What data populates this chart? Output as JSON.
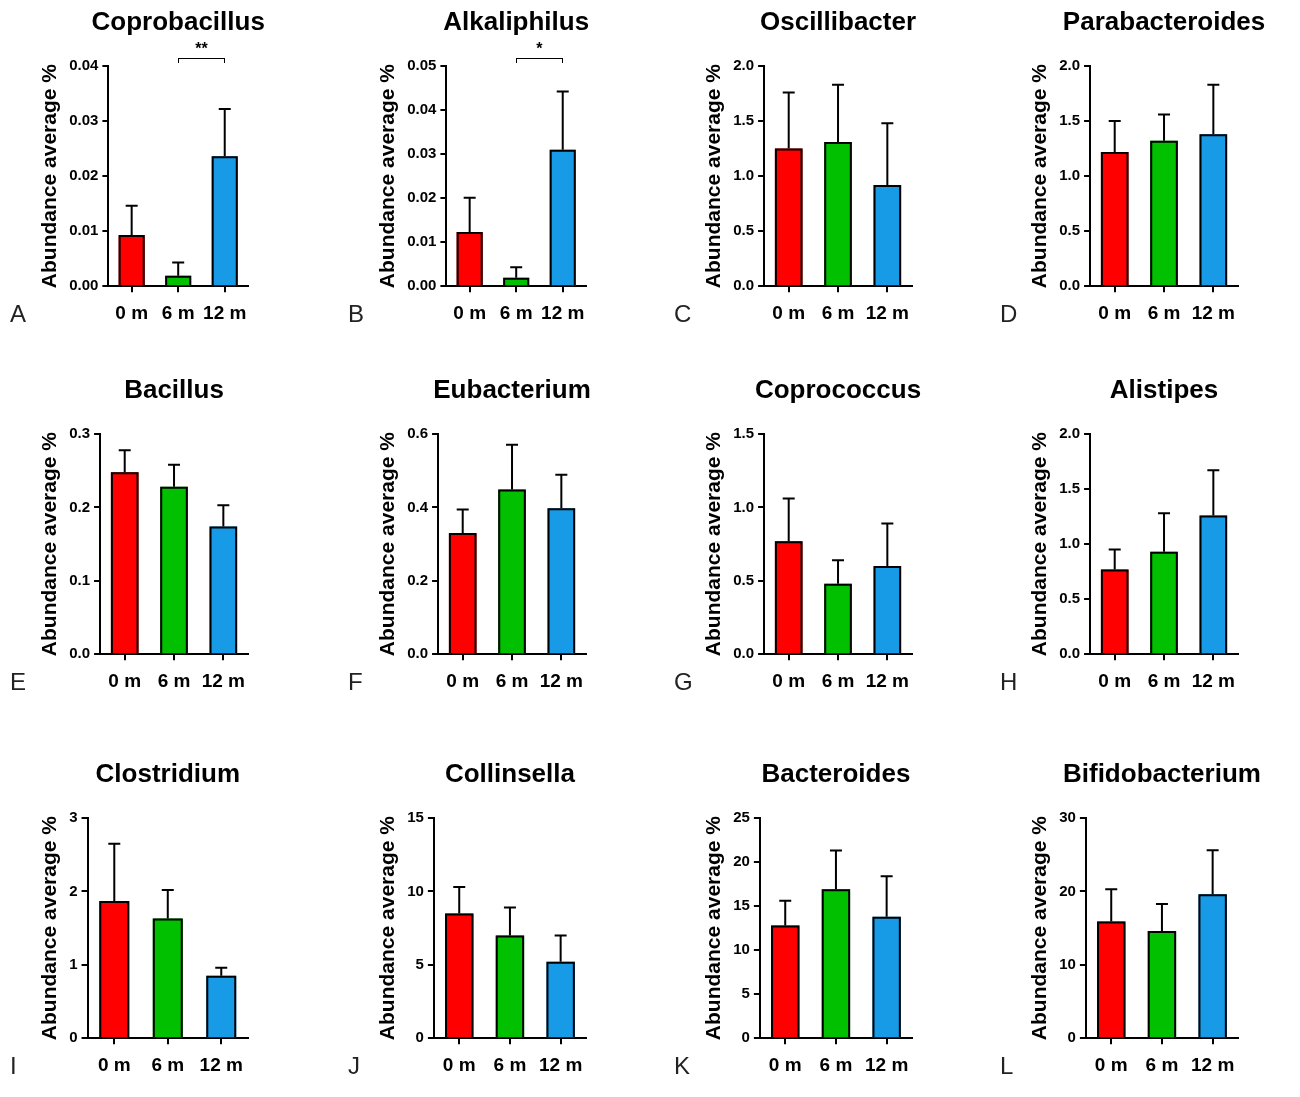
{
  "chart_data": [
    {
      "type": "bar",
      "title": "Coprobacillus",
      "ylabel": "Abundance average %",
      "categories": [
        "0 m",
        "6 m",
        "12 m"
      ],
      "values": [
        0.0093,
        0.0019,
        0.0236
      ],
      "colors": [
        "#ff0000",
        "#00c000",
        "#189be6"
      ],
      "errors": [
        [
          0.0093,
          0.0146
        ],
        [
          0.0019,
          0.0043
        ],
        [
          0.0236,
          0.0322
        ]
      ],
      "ylim": [
        0,
        0.04
      ],
      "yticks": [
        {
          "value": 0,
          "label": "0.00"
        },
        0.01,
        0.02,
        0.03,
        0.04
      ],
      "annotations": [
        "**",
        "A"
      ]
    },
    {
      "type": "bar",
      "title": "Alkaliphilus",
      "ylabel": "Abundance average %",
      "categories": [
        "0 m",
        "6 m",
        "12 m"
      ],
      "values": [
        0.0123,
        0.0019,
        0.031
      ],
      "colors": [
        "#ff0000",
        "#00c000",
        "#189be6"
      ],
      "errors": [
        [
          0.0123,
          0.0201
        ],
        [
          0.0019,
          0.0043
        ],
        [
          0.031,
          0.0442
        ]
      ],
      "ylim": [
        0,
        0.05
      ],
      "yticks": [
        {
          "value": 0,
          "label": "0.00"
        },
        0.01,
        0.02,
        0.03,
        0.04,
        0.05
      ],
      "annotations": [
        "*",
        "B"
      ]
    },
    {
      "type": "bar",
      "title": "Oscillibacter",
      "ylabel": "Abundance average %",
      "categories": [
        "0 m",
        "6 m",
        "12 m"
      ],
      "values": [
        1.25,
        1.31,
        0.92
      ],
      "colors": [
        "#ff0000",
        "#00c000",
        "#189be6"
      ],
      "errors": [
        [
          1.25,
          1.76
        ],
        [
          1.31,
          1.83
        ],
        [
          0.92,
          1.48
        ]
      ],
      "ylim": [
        0,
        2
      ],
      "yticks": [
        {
          "value": 0,
          "label": "0.0"
        },
        0.5,
        {
          "value": 1,
          "label": "1.0"
        },
        1.5,
        {
          "value": 2,
          "label": "2.0"
        }
      ],
      "annotations": [
        "C"
      ]
    },
    {
      "type": "bar",
      "title": "Parabacteroides",
      "ylabel": "Abundance average %",
      "categories": [
        "0 m",
        "6 m",
        "12 m"
      ],
      "values": [
        1.22,
        1.32,
        1.38
      ],
      "colors": [
        "#ff0000",
        "#00c000",
        "#189be6"
      ],
      "errors": [
        [
          1.22,
          1.5
        ],
        [
          1.32,
          1.56
        ],
        [
          1.38,
          1.83
        ]
      ],
      "ylim": [
        0,
        2
      ],
      "yticks": [
        {
          "value": 0,
          "label": "0.0"
        },
        0.5,
        {
          "value": 1,
          "label": "1.0"
        },
        1.5,
        {
          "value": 2,
          "label": "2.0"
        }
      ],
      "annotations": [
        "D"
      ]
    },
    {
      "type": "bar",
      "title": "Bacillus",
      "ylabel": "Abundance average %",
      "categories": [
        "0 m",
        "6 m",
        "12 m"
      ],
      "values": [
        0.248,
        0.228,
        0.174
      ],
      "colors": [
        "#ff0000",
        "#00c000",
        "#189be6"
      ],
      "errors": [
        [
          0.248,
          0.278
        ],
        [
          0.228,
          0.258
        ],
        [
          0.174,
          0.203
        ]
      ],
      "ylim": [
        0,
        0.3
      ],
      "yticks": [
        {
          "value": 0,
          "label": "0.0"
        },
        0.1,
        0.2,
        0.3
      ],
      "annotations": [
        "E"
      ]
    },
    {
      "type": "bar",
      "title": "Eubacterium",
      "ylabel": "Abundance average %",
      "categories": [
        "0 m",
        "6 m",
        "12 m"
      ],
      "values": [
        0.33,
        0.449,
        0.398
      ],
      "colors": [
        "#ff0000",
        "#00c000",
        "#189be6"
      ],
      "errors": [
        [
          0.33,
          0.394
        ],
        [
          0.449,
          0.571
        ],
        [
          0.398,
          0.489
        ]
      ],
      "ylim": [
        0,
        0.6
      ],
      "yticks": [
        {
          "value": 0,
          "label": "0.0"
        },
        0.2,
        0.4,
        0.6
      ],
      "annotations": [
        "F"
      ]
    },
    {
      "type": "bar",
      "title": "Coprococcus",
      "ylabel": "Abundance average %",
      "categories": [
        "0 m",
        "6 m",
        "12 m"
      ],
      "values": [
        0.77,
        0.48,
        0.6
      ],
      "colors": [
        "#ff0000",
        "#00c000",
        "#189be6"
      ],
      "errors": [
        [
          0.77,
          1.06
        ],
        [
          0.48,
          0.64
        ],
        [
          0.6,
          0.89
        ]
      ],
      "ylim": [
        0,
        1.5
      ],
      "yticks": [
        {
          "value": 0,
          "label": "0.0"
        },
        0.5,
        {
          "value": 1,
          "label": "1.0"
        },
        1.5
      ],
      "annotations": [
        "G"
      ]
    },
    {
      "type": "bar",
      "title": "Alistipes",
      "ylabel": "Abundance average %",
      "categories": [
        "0 m",
        "6 m",
        "12 m"
      ],
      "values": [
        0.77,
        0.93,
        1.26
      ],
      "colors": [
        "#ff0000",
        "#00c000",
        "#189be6"
      ],
      "errors": [
        [
          0.77,
          0.95
        ],
        [
          0.93,
          1.28
        ],
        [
          1.26,
          1.67
        ]
      ],
      "ylim": [
        0,
        2
      ],
      "yticks": [
        {
          "value": 0,
          "label": "0.0"
        },
        0.5,
        {
          "value": 1,
          "label": "1.0"
        },
        1.5,
        {
          "value": 2,
          "label": "2.0"
        }
      ],
      "annotations": [
        "H"
      ]
    },
    {
      "type": "bar",
      "title": "Clostridium",
      "ylabel": "Abundance average %",
      "categories": [
        "0 m",
        "6 m",
        "12 m"
      ],
      "values": [
        1.87,
        1.63,
        0.85
      ],
      "colors": [
        "#ff0000",
        "#00c000",
        "#189be6"
      ],
      "errors": [
        [
          1.87,
          2.65
        ],
        [
          1.63,
          2.02
        ],
        [
          0.85,
          0.96
        ]
      ],
      "ylim": [
        0,
        3
      ],
      "yticks": [
        0,
        1,
        2,
        3
      ],
      "annotations": [
        "I"
      ]
    },
    {
      "type": "bar",
      "title": "Collinsella",
      "ylabel": "Abundance average %",
      "categories": [
        "0 m",
        "6 m",
        "12 m"
      ],
      "values": [
        8.5,
        7.0,
        5.2
      ],
      "colors": [
        "#ff0000",
        "#00c000",
        "#189be6"
      ],
      "errors": [
        [
          8.5,
          10.3
        ],
        [
          7.0,
          8.9
        ],
        [
          5.2,
          7.0
        ]
      ],
      "ylim": [
        0,
        15
      ],
      "yticks": [
        0,
        5,
        10,
        15
      ],
      "annotations": [
        "J"
      ]
    },
    {
      "type": "bar",
      "title": "Bacteroides",
      "ylabel": "Abundance average %",
      "categories": [
        "0 m",
        "6 m",
        "12 m"
      ],
      "values": [
        12.8,
        16.9,
        13.8
      ],
      "colors": [
        "#ff0000",
        "#00c000",
        "#189be6"
      ],
      "errors": [
        [
          12.8,
          15.6
        ],
        [
          16.9,
          21.3
        ],
        [
          13.8,
          18.4
        ]
      ],
      "ylim": [
        0,
        25
      ],
      "yticks": [
        0,
        5,
        10,
        15,
        20,
        25
      ],
      "annotations": [
        "K"
      ]
    },
    {
      "type": "bar",
      "title": "Bifidobacterium",
      "ylabel": "Abundance average %",
      "categories": [
        "0 m",
        "6 m",
        "12 m"
      ],
      "values": [
        15.9,
        14.6,
        19.6
      ],
      "colors": [
        "#ff0000",
        "#00c000",
        "#189be6"
      ],
      "errors": [
        [
          15.9,
          20.3
        ],
        [
          14.6,
          18.3
        ],
        [
          19.6,
          25.6
        ]
      ],
      "ylim": [
        0,
        30
      ],
      "yticks": [
        0,
        10,
        20,
        30
      ],
      "annotations": [
        "L"
      ]
    }
  ]
}
